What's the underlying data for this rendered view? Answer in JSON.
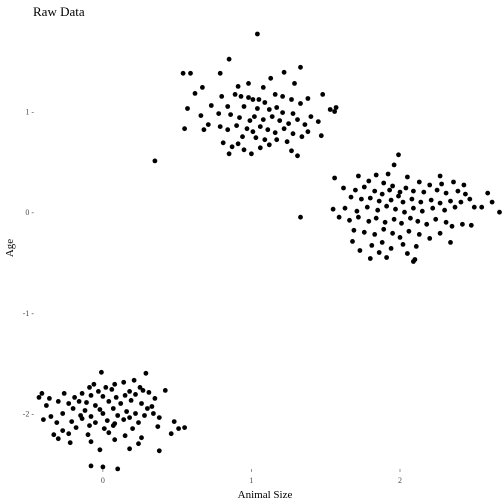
{
  "chart_data": {
    "type": "scatter",
    "title": "Raw Data",
    "xlabel": "Animal Size",
    "ylabel": "Age",
    "xlim": [
      -0.45,
      2.7
    ],
    "ylim": [
      -2.72,
      1.83
    ],
    "x_ticks": [
      0,
      1,
      2
    ],
    "y_ticks": [
      -2,
      -1,
      0,
      1
    ],
    "x_tick_labels": [
      "0",
      "1",
      "2"
    ],
    "y_tick_labels": [
      "-2 -",
      "-1 -",
      "0 -",
      "1 -"
    ],
    "grid": false,
    "legend": "none",
    "point_color": "#000000",
    "series": [
      {
        "points": [
          [
            1.04,
            1.77
          ],
          [
            0.85,
            1.52
          ],
          [
            0.54,
            1.38
          ],
          [
            0.59,
            1.38
          ],
          [
            0.79,
            1.38
          ],
          [
            1.33,
            1.44
          ],
          [
            1.22,
            1.39
          ],
          [
            1.13,
            1.33
          ],
          [
            0.98,
            1.28
          ],
          [
            0.91,
            1.25
          ],
          [
            1.08,
            1.24
          ],
          [
            0.67,
            1.24
          ],
          [
            1.29,
            1.28
          ],
          [
            0.62,
            1.18
          ],
          [
            0.8,
            1.15
          ],
          [
            0.89,
            1.17
          ],
          [
            0.93,
            1.15
          ],
          [
            0.98,
            1.14
          ],
          [
            1.01,
            1.12
          ],
          [
            1.05,
            1.12
          ],
          [
            1.09,
            1.09
          ],
          [
            1.16,
            1.17
          ],
          [
            1.21,
            1.15
          ],
          [
            1.27,
            1.12
          ],
          [
            1.33,
            1.08
          ],
          [
            1.38,
            1.13
          ],
          [
            1.48,
            1.17
          ],
          [
            0.73,
            1.06
          ],
          [
            0.84,
            1.05
          ],
          [
            0.95,
            1.05
          ],
          [
            1.04,
            1.03
          ],
          [
            1.12,
            1.02
          ],
          [
            1.17,
            1.04
          ],
          [
            1.21,
            0.99
          ],
          [
            1.28,
            0.98
          ],
          [
            1.4,
            0.95
          ],
          [
            1.53,
            1.02
          ],
          [
            1.57,
            1.04
          ],
          [
            1.56,
            1.0
          ],
          [
            0.57,
            1.03
          ],
          [
            0.66,
            0.96
          ],
          [
            0.78,
            0.98
          ],
          [
            0.86,
            0.97
          ],
          [
            0.92,
            0.94
          ],
          [
            0.99,
            0.91
          ],
          [
            1.02,
            0.95
          ],
          [
            1.08,
            0.92
          ],
          [
            1.14,
            0.95
          ],
          [
            1.19,
            0.91
          ],
          [
            1.25,
            0.88
          ],
          [
            1.31,
            0.92
          ],
          [
            1.36,
            0.87
          ],
          [
            1.45,
            0.9
          ],
          [
            0.71,
            0.87
          ],
          [
            0.79,
            0.85
          ],
          [
            0.84,
            0.82
          ],
          [
            0.9,
            0.86
          ],
          [
            0.97,
            0.83
          ],
          [
            1.01,
            0.8
          ],
          [
            1.06,
            0.85
          ],
          [
            1.11,
            0.82
          ],
          [
            1.16,
            0.79
          ],
          [
            1.22,
            0.83
          ],
          [
            1.28,
            0.78
          ],
          [
            1.34,
            0.75
          ],
          [
            1.38,
            0.8
          ],
          [
            1.47,
            0.76
          ],
          [
            0.55,
            0.83
          ],
          [
            0.68,
            0.82
          ],
          [
            0.94,
            0.75
          ],
          [
            1.03,
            0.74
          ],
          [
            1.17,
            0.72
          ],
          [
            1.24,
            0.7
          ],
          [
            0.81,
            0.69
          ],
          [
            0.87,
            0.65
          ],
          [
            0.95,
            0.62
          ],
          [
            1.0,
            0.58
          ],
          [
            1.06,
            0.64
          ],
          [
            1.12,
            0.67
          ],
          [
            1.27,
            0.61
          ],
          [
            1.31,
            0.56
          ],
          [
            0.85,
            0.58
          ],
          [
            0.35,
            0.51
          ],
          [
            0.91,
            0.68
          ],
          [
            1.09,
            0.72
          ]
        ]
      },
      {
        "points": [
          [
            1.99,
            0.57
          ],
          [
            1.96,
            0.47
          ],
          [
            1.72,
            0.36
          ],
          [
            1.84,
            0.37
          ],
          [
            1.92,
            0.38
          ],
          [
            2.05,
            0.35
          ],
          [
            2.27,
            0.36
          ],
          [
            1.56,
            0.34
          ],
          [
            1.79,
            0.31
          ],
          [
            1.89,
            0.29
          ],
          [
            1.95,
            0.26
          ],
          [
            2.13,
            0.3
          ],
          [
            2.2,
            0.27
          ],
          [
            2.28,
            0.28
          ],
          [
            2.36,
            0.3
          ],
          [
            2.43,
            0.27
          ],
          [
            1.62,
            0.24
          ],
          [
            1.7,
            0.22
          ],
          [
            1.76,
            0.25
          ],
          [
            1.83,
            0.21
          ],
          [
            1.88,
            0.18
          ],
          [
            1.93,
            0.22
          ],
          [
            2.0,
            0.2
          ],
          [
            2.04,
            0.24
          ],
          [
            2.09,
            0.21
          ],
          [
            2.16,
            0.2
          ],
          [
            2.25,
            0.22
          ],
          [
            2.31,
            0.19
          ],
          [
            2.39,
            0.21
          ],
          [
            2.44,
            0.18
          ],
          [
            2.59,
            0.19
          ],
          [
            1.67,
            0.15
          ],
          [
            1.74,
            0.13
          ],
          [
            1.8,
            0.14
          ],
          [
            1.86,
            0.11
          ],
          [
            1.94,
            0.12
          ],
          [
            1.99,
            0.16
          ],
          [
            2.02,
            0.1
          ],
          [
            2.08,
            0.13
          ],
          [
            2.14,
            0.1
          ],
          [
            2.21,
            0.12
          ],
          [
            2.27,
            0.09
          ],
          [
            2.34,
            0.11
          ],
          [
            2.41,
            0.1
          ],
          [
            2.47,
            0.13
          ],
          [
            2.5,
            0.05
          ],
          [
            2.62,
            0.1
          ],
          [
            1.55,
            0.03
          ],
          [
            1.63,
            0.04
          ],
          [
            1.71,
            0.01
          ],
          [
            1.78,
            0.05
          ],
          [
            1.85,
            0.02
          ],
          [
            1.91,
            0.06
          ],
          [
            1.97,
            0.03
          ],
          [
            2.03,
            0.0
          ],
          [
            2.09,
            0.04
          ],
          [
            2.15,
            0.01
          ],
          [
            2.22,
            0.04
          ],
          [
            2.3,
            0.02
          ],
          [
            2.37,
            0.05
          ],
          [
            2.55,
            0.05
          ],
          [
            2.67,
            0.0
          ],
          [
            1.33,
            -0.05
          ],
          [
            1.59,
            -0.05
          ],
          [
            1.66,
            -0.08
          ],
          [
            1.72,
            -0.05
          ],
          [
            1.79,
            -0.09
          ],
          [
            1.84,
            -0.06
          ],
          [
            1.9,
            -0.1
          ],
          [
            1.96,
            -0.07
          ],
          [
            2.01,
            -0.11
          ],
          [
            2.07,
            -0.06
          ],
          [
            2.12,
            -0.09
          ],
          [
            2.18,
            -0.12
          ],
          [
            2.24,
            -0.07
          ],
          [
            2.31,
            -0.1
          ],
          [
            2.35,
            -0.14
          ],
          [
            2.42,
            -0.12
          ],
          [
            2.48,
            -0.13
          ],
          [
            1.69,
            -0.18
          ],
          [
            1.76,
            -0.2
          ],
          [
            1.83,
            -0.22
          ],
          [
            1.89,
            -0.17
          ],
          [
            1.95,
            -0.21
          ],
          [
            2.0,
            -0.25
          ],
          [
            2.06,
            -0.19
          ],
          [
            2.13,
            -0.22
          ],
          [
            2.2,
            -0.26
          ],
          [
            2.27,
            -0.21
          ],
          [
            1.68,
            -0.29
          ],
          [
            1.81,
            -0.33
          ],
          [
            1.88,
            -0.3
          ],
          [
            1.94,
            -0.36
          ],
          [
            2.02,
            -0.32
          ],
          [
            2.11,
            -0.34
          ],
          [
            2.34,
            -0.3
          ],
          [
            1.86,
            -0.4
          ],
          [
            2.05,
            -0.41
          ],
          [
            1.8,
            -0.46
          ],
          [
            1.91,
            -0.45
          ],
          [
            2.1,
            -0.47
          ],
          [
            2.09,
            -0.49
          ],
          [
            1.73,
            -0.38
          ]
        ]
      },
      {
        "points": [
          [
            -0.01,
            -1.59
          ],
          [
            0.29,
            -1.6
          ],
          [
            0.21,
            -1.67
          ],
          [
            0.14,
            -1.69
          ],
          [
            0.08,
            -1.71
          ],
          [
            -0.06,
            -1.71
          ],
          [
            -0.09,
            -1.74
          ],
          [
            0.02,
            -1.74
          ],
          [
            0.25,
            -1.74
          ],
          [
            0.06,
            -1.76
          ],
          [
            -0.03,
            -1.78
          ],
          [
            -0.14,
            -1.8
          ],
          [
            -0.26,
            -1.8
          ],
          [
            -0.41,
            -1.8
          ],
          [
            0.18,
            -1.78
          ],
          [
            0.27,
            -1.77
          ],
          [
            0.31,
            -1.79
          ],
          [
            0.42,
            -1.77
          ],
          [
            -0.43,
            -1.84
          ],
          [
            -0.36,
            -1.85
          ],
          [
            -0.19,
            -1.84
          ],
          [
            -0.08,
            -1.82
          ],
          [
            0.0,
            -1.83
          ],
          [
            0.09,
            -1.84
          ],
          [
            0.15,
            -1.82
          ],
          [
            0.22,
            -1.81
          ],
          [
            0.35,
            -1.85
          ],
          [
            -0.3,
            -1.88
          ],
          [
            -0.23,
            -1.9
          ],
          [
            -0.16,
            -1.88
          ],
          [
            -0.11,
            -1.89
          ],
          [
            -0.05,
            -1.92
          ],
          [
            0.04,
            -1.88
          ],
          [
            0.12,
            -1.9
          ],
          [
            0.19,
            -1.87
          ],
          [
            0.26,
            -1.9
          ],
          [
            0.33,
            -1.93
          ],
          [
            -0.2,
            -1.95
          ],
          [
            -0.12,
            -1.97
          ],
          [
            -0.02,
            -1.96
          ],
          [
            0.07,
            -1.95
          ],
          [
            0.16,
            -1.98
          ],
          [
            0.22,
            -2.0
          ],
          [
            -0.35,
            -2.03
          ],
          [
            -0.27,
            -2.0
          ],
          [
            -0.15,
            -2.02
          ],
          [
            -0.08,
            -2.03
          ],
          [
            0.0,
            -2.0
          ],
          [
            0.1,
            -2.02
          ],
          [
            0.18,
            -2.04
          ],
          [
            0.28,
            -2.02
          ],
          [
            0.34,
            -2.0
          ],
          [
            0.38,
            -2.04
          ],
          [
            0.48,
            -2.08
          ],
          [
            -0.4,
            -2.06
          ],
          [
            -0.31,
            -2.09
          ],
          [
            -0.21,
            -2.08
          ],
          [
            -0.14,
            -2.05
          ],
          [
            -0.05,
            -2.09
          ],
          [
            0.03,
            -2.07
          ],
          [
            0.08,
            -2.1
          ],
          [
            0.14,
            -2.06
          ],
          [
            0.24,
            -2.09
          ],
          [
            0.37,
            -2.13
          ],
          [
            0.51,
            -2.15
          ],
          [
            -0.27,
            -2.17
          ],
          [
            -0.18,
            -2.14
          ],
          [
            -0.09,
            -2.12
          ],
          [
            0.01,
            -2.15
          ],
          [
            0.07,
            -2.12
          ],
          [
            0.2,
            -2.15
          ],
          [
            0.46,
            -2.2
          ],
          [
            0.55,
            -2.14
          ],
          [
            -0.33,
            -2.21
          ],
          [
            -0.23,
            -2.2
          ],
          [
            -0.1,
            -2.21
          ],
          [
            0.04,
            -2.19
          ],
          [
            0.15,
            -2.22
          ],
          [
            0.26,
            -2.24
          ],
          [
            -0.22,
            -2.29
          ],
          [
            -0.08,
            -2.28
          ],
          [
            0.08,
            -2.26
          ],
          [
            0.24,
            -2.3
          ],
          [
            -0.02,
            -2.36
          ],
          [
            0.18,
            -2.35
          ],
          [
            0.38,
            -2.37
          ],
          [
            -0.08,
            -2.52
          ],
          [
            0.0,
            -2.53
          ],
          [
            0.1,
            -2.55
          ],
          [
            -0.3,
            -2.25
          ],
          [
            0.3,
            -1.95
          ],
          [
            -0.38,
            -1.92
          ]
        ]
      }
    ]
  }
}
